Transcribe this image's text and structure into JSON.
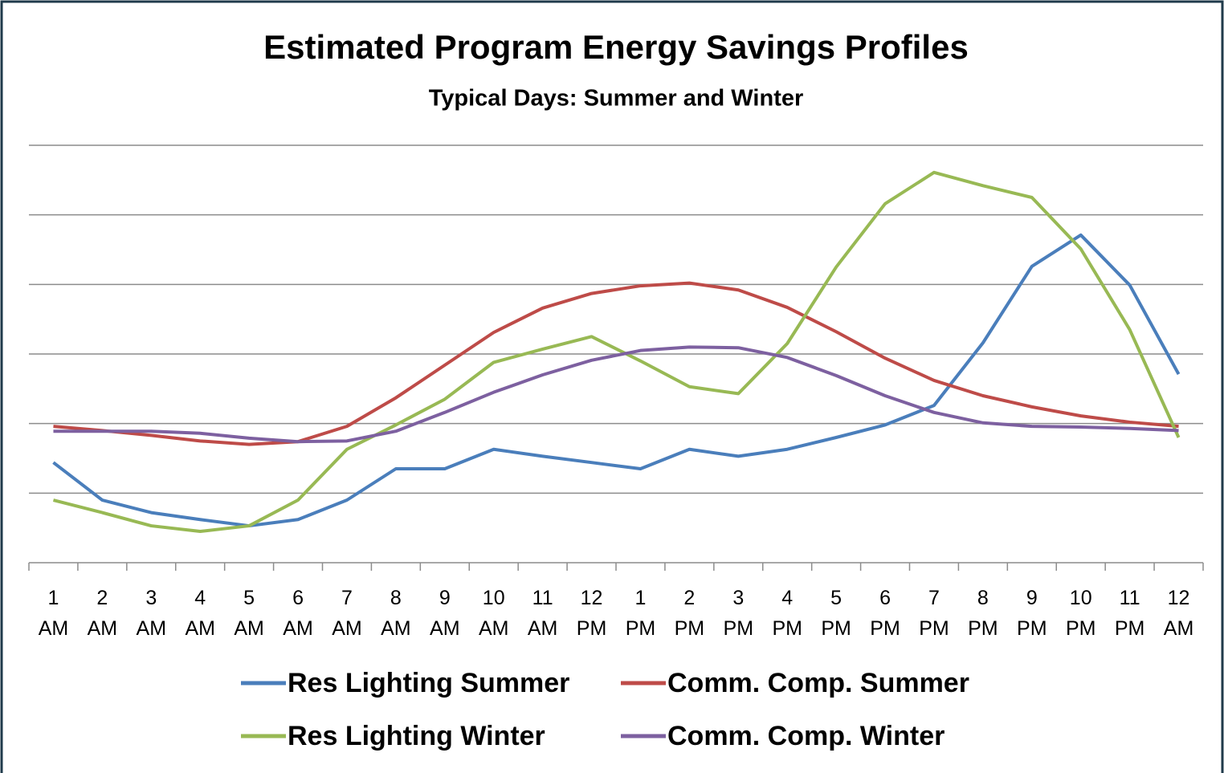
{
  "chart_data": {
    "type": "line",
    "title": "Estimated Program Energy Savings Profiles",
    "subtitle": "Typical Days: Summer and Winter",
    "categories": [
      "1 AM",
      "2 AM",
      "3 AM",
      "4 AM",
      "5 AM",
      "6 AM",
      "7 AM",
      "8 AM",
      "9 AM",
      "10 AM",
      "11 AM",
      "12 PM",
      "1 PM",
      "2 PM",
      "3 PM",
      "4 PM",
      "5 PM",
      "6 PM",
      "7 PM",
      "8 PM",
      "9 PM",
      "10 PM",
      "11 PM",
      "12 AM"
    ],
    "series": [
      {
        "name": "Res Lighting Summer",
        "color": "#4a7ebb",
        "values": [
          1.44,
          0.9,
          0.72,
          0.62,
          0.53,
          0.62,
          0.9,
          1.35,
          1.35,
          1.63,
          1.53,
          1.44,
          1.35,
          1.63,
          1.53,
          1.63,
          1.8,
          1.98,
          2.26,
          3.16,
          4.26,
          4.71,
          3.99,
          2.71
        ]
      },
      {
        "name": "Comm. Comp. Summer",
        "color": "#be4b48",
        "values": [
          1.96,
          1.9,
          1.83,
          1.75,
          1.7,
          1.74,
          1.96,
          2.37,
          2.84,
          3.31,
          3.66,
          3.87,
          3.98,
          4.02,
          3.92,
          3.67,
          3.32,
          2.94,
          2.62,
          2.4,
          2.24,
          2.11,
          2.02,
          1.96
        ]
      },
      {
        "name": "Res Lighting Winter",
        "color": "#98b954",
        "values": [
          0.9,
          0.72,
          0.53,
          0.45,
          0.53,
          0.9,
          1.63,
          1.98,
          2.35,
          2.88,
          3.07,
          3.25,
          2.9,
          2.53,
          2.43,
          3.15,
          4.25,
          5.16,
          5.61,
          5.42,
          5.25,
          4.51,
          3.35,
          1.8
        ]
      },
      {
        "name": "Comm. Comp. Winter",
        "color": "#7d60a0",
        "values": [
          1.89,
          1.89,
          1.89,
          1.86,
          1.79,
          1.74,
          1.75,
          1.89,
          2.16,
          2.45,
          2.7,
          2.91,
          3.05,
          3.1,
          3.09,
          2.95,
          2.69,
          2.4,
          2.16,
          2.01,
          1.96,
          1.95,
          1.93,
          1.9
        ]
      }
    ],
    "ylim": [
      0,
      6
    ],
    "yticks": [
      1,
      2,
      3,
      4,
      5,
      6
    ],
    "grid": true,
    "legend": "bottom"
  }
}
